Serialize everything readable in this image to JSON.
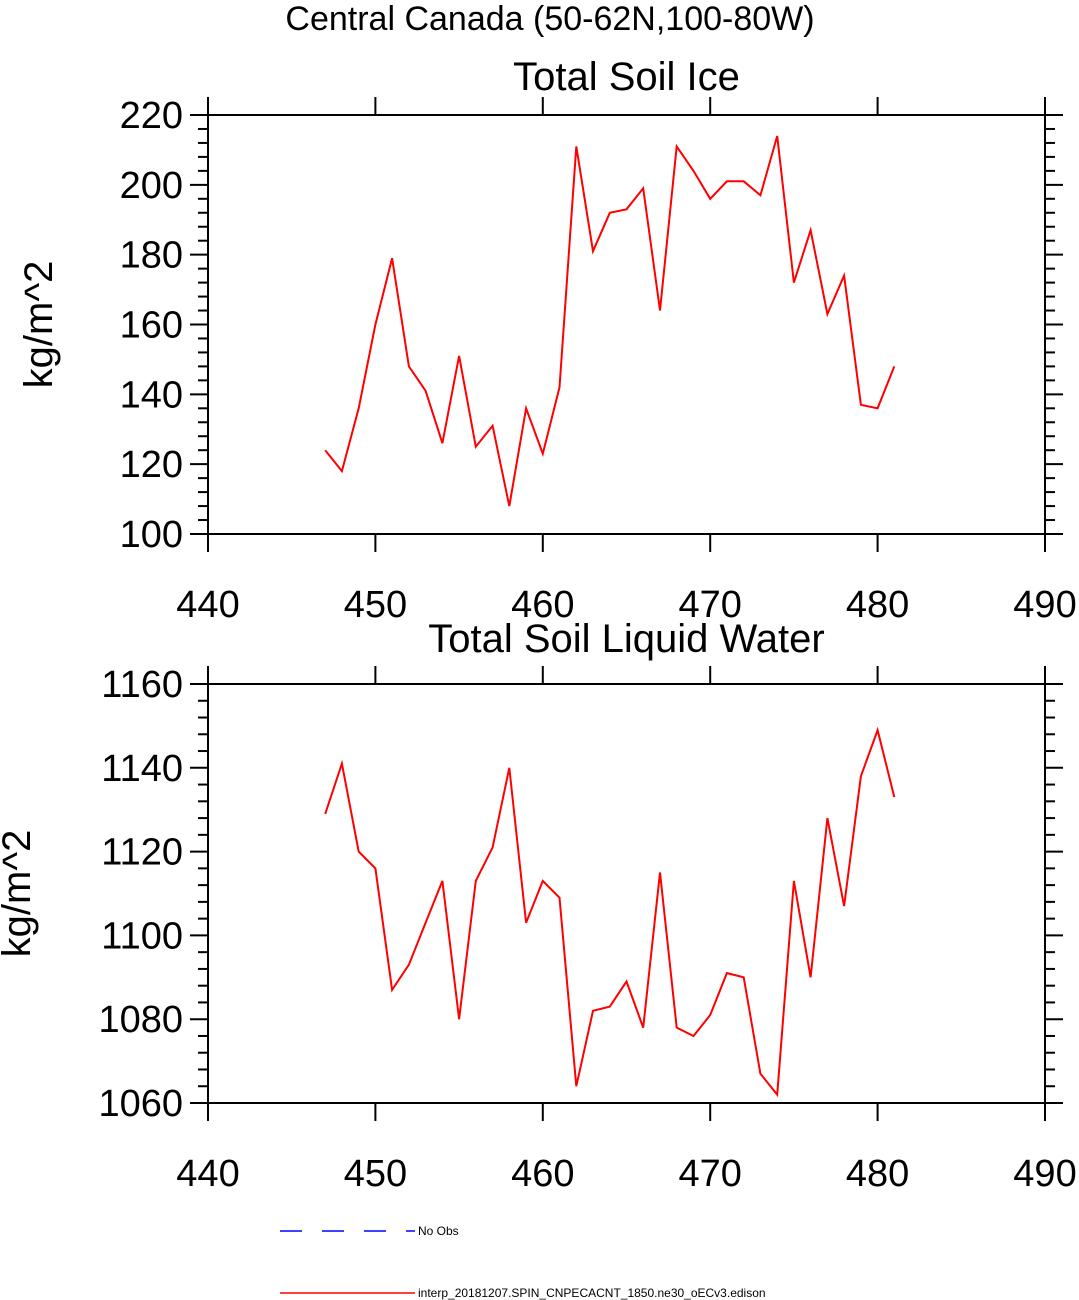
{
  "figure": {
    "title": "Central Canada (50-62N,100-80W)"
  },
  "colors": {
    "model_series": "#ff0000",
    "obs_series": "#0000ff",
    "axes": "#000000"
  },
  "legend": {
    "placement": "bottom",
    "entries": [
      {
        "label": "No Obs",
        "color": "#0000ff",
        "style": "dashed"
      },
      {
        "label": "interp_20181207.SPIN_CNPECACNT_1850.ne30_oECv3.edison",
        "color": "#ff0000",
        "style": "solid"
      }
    ]
  },
  "chart_data": [
    {
      "type": "line",
      "title": "Total Soil Ice",
      "xlabel": "",
      "ylabel": "kg/m^2",
      "xlim": [
        440,
        490
      ],
      "ylim": [
        100,
        220
      ],
      "xticks": [
        440,
        450,
        460,
        470,
        480,
        490
      ],
      "yticks": [
        100,
        120,
        140,
        160,
        180,
        200,
        220
      ],
      "grid": false,
      "series": [
        {
          "name": "interp_20181207.SPIN_CNPECACNT_1850.ne30_oECv3.edison",
          "color": "#ff0000",
          "x": [
            447,
            448,
            449,
            450,
            451,
            452,
            453,
            454,
            455,
            456,
            457,
            458,
            459,
            460,
            461,
            462,
            463,
            464,
            465,
            466,
            467,
            468,
            469,
            470,
            471,
            472,
            473,
            474,
            475,
            476,
            477,
            478,
            479,
            480,
            481
          ],
          "y": [
            124,
            118,
            136,
            160,
            179,
            148,
            141,
            126,
            151,
            125,
            131,
            108,
            136,
            123,
            142,
            211,
            181,
            192,
            193,
            199,
            164,
            211,
            204,
            196,
            201,
            201,
            197,
            214,
            172,
            187,
            163,
            174,
            137,
            136,
            148
          ]
        }
      ]
    },
    {
      "type": "line",
      "title": "Total Soil Liquid Water",
      "xlabel": "",
      "ylabel": "kg/m^2",
      "xlim": [
        440,
        490
      ],
      "ylim": [
        1060,
        1160
      ],
      "xticks": [
        440,
        450,
        460,
        470,
        480,
        490
      ],
      "yticks": [
        1060,
        1080,
        1100,
        1120,
        1140,
        1160
      ],
      "grid": false,
      "series": [
        {
          "name": "interp_20181207.SPIN_CNPECACNT_1850.ne30_oECv3.edison",
          "color": "#ff0000",
          "x": [
            447,
            448,
            449,
            450,
            451,
            452,
            453,
            454,
            455,
            456,
            457,
            458,
            459,
            460,
            461,
            462,
            463,
            464,
            465,
            466,
            467,
            468,
            469,
            470,
            471,
            472,
            473,
            474,
            475,
            476,
            477,
            478,
            479,
            480,
            481
          ],
          "y": [
            1129,
            1141,
            1120,
            1116,
            1087,
            1093,
            1103,
            1113,
            1080,
            1113,
            1121,
            1140,
            1103,
            1113,
            1109,
            1064,
            1082,
            1083,
            1089,
            1078,
            1115,
            1078,
            1076,
            1081,
            1091,
            1090,
            1067,
            1062,
            1113,
            1090,
            1128,
            1107,
            1138,
            1149,
            1133
          ]
        }
      ]
    }
  ]
}
